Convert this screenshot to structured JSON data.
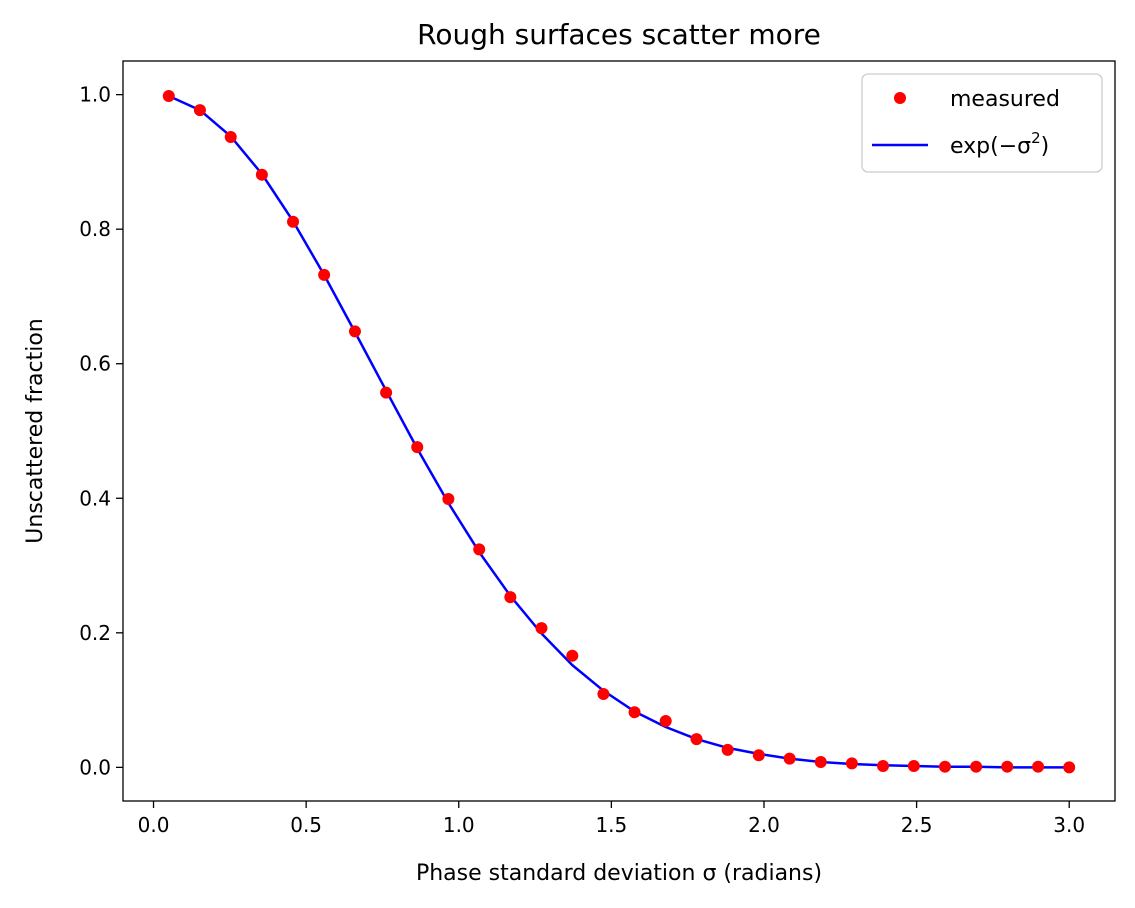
{
  "chart_data": {
    "type": "scatter",
    "title": "Rough surfaces scatter more",
    "xlabel": "Phase standard deviation σ (radians)",
    "ylabel": "Unscattered fraction",
    "xlim": [
      -0.1,
      3.15
    ],
    "ylim": [
      -0.05,
      1.05
    ],
    "xticks": [
      0.0,
      0.5,
      1.0,
      1.5,
      2.0,
      2.5,
      3.0
    ],
    "xtick_labels": [
      "0.0",
      "0.5",
      "1.0",
      "1.5",
      "2.0",
      "2.5",
      "3.0"
    ],
    "yticks": [
      0.0,
      0.2,
      0.4,
      0.6,
      0.8,
      1.0
    ],
    "ytick_labels": [
      "0.0",
      "0.2",
      "0.4",
      "0.6",
      "0.8",
      "1.0"
    ],
    "grid": false,
    "legend_position": "top-right",
    "series": [
      {
        "name": "measured",
        "kind": "markers",
        "color": "#ff0000",
        "x": [
          0.05,
          0.152,
          0.253,
          0.355,
          0.457,
          0.559,
          0.66,
          0.762,
          0.864,
          0.966,
          1.067,
          1.169,
          1.271,
          1.372,
          1.474,
          1.576,
          1.678,
          1.779,
          1.881,
          1.983,
          2.084,
          2.186,
          2.288,
          2.39,
          2.491,
          2.593,
          2.695,
          2.797,
          2.898,
          3.0
        ],
        "y": [
          0.998,
          0.977,
          0.937,
          0.881,
          0.811,
          0.732,
          0.648,
          0.557,
          0.476,
          0.399,
          0.324,
          0.253,
          0.207,
          0.166,
          0.109,
          0.082,
          0.069,
          0.042,
          0.026,
          0.018,
          0.013,
          0.008,
          0.006,
          0.002,
          0.002,
          0.001,
          0.001,
          0.001,
          0.001,
          0.0
        ]
      },
      {
        "name": "exp(−σ²)",
        "kind": "line",
        "color": "#0000ff",
        "x": [
          0.05,
          0.152,
          0.253,
          0.355,
          0.457,
          0.559,
          0.66,
          0.762,
          0.864,
          0.966,
          1.067,
          1.169,
          1.271,
          1.372,
          1.474,
          1.576,
          1.678,
          1.779,
          1.881,
          1.983,
          2.084,
          2.186,
          2.288,
          2.39,
          2.491,
          2.593,
          2.695,
          2.797,
          2.898,
          3.0
        ],
        "y": [
          0.998,
          0.977,
          0.938,
          0.882,
          0.812,
          0.732,
          0.647,
          0.56,
          0.474,
          0.393,
          0.32,
          0.255,
          0.199,
          0.152,
          0.114,
          0.083,
          0.06,
          0.042,
          0.029,
          0.02,
          0.013,
          0.008,
          0.005,
          0.003,
          0.002,
          0.001,
          0.001,
          0.0,
          0.0,
          0.0
        ]
      }
    ],
    "legend": {
      "entries": [
        "measured",
        "exp(−σ²)"
      ],
      "line_label_parts": {
        "prefix": "exp(−σ",
        "sup": "2",
        "suffix": ")"
      }
    }
  }
}
